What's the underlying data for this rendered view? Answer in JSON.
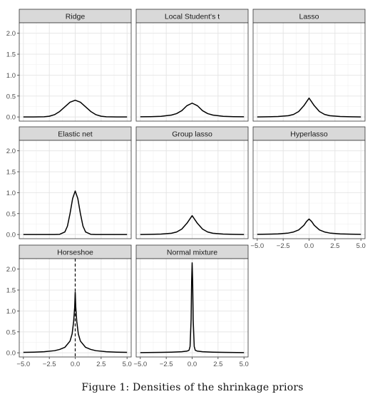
{
  "figure": {
    "caption": "Figure 1: Densities of the shrinkage priors"
  },
  "chart_data": {
    "type": "line",
    "layout": "facet-grid 3x3",
    "xlim": [
      -5.4,
      5.4
    ],
    "ylim": [
      -0.1,
      2.25
    ],
    "x_ticks": [
      -5.0,
      -2.5,
      0.0,
      2.5,
      5.0
    ],
    "y_ticks": [
      0.0,
      0.5,
      1.0,
      1.5,
      2.0
    ],
    "x_tick_labels": [
      "−5.0",
      "−2.5",
      "0.0",
      "2.5",
      "5.0"
    ],
    "y_tick_labels": [
      "0.0",
      "0.5",
      "1.0",
      "1.5",
      "2.0"
    ],
    "grid": true,
    "panel_strip_color": "#d9d9d9",
    "line_color": "#000000",
    "panels": [
      {
        "name": "Ridge",
        "x": [
          -5.0,
          -4.0,
          -3.0,
          -2.5,
          -2.0,
          -1.5,
          -1.0,
          -0.5,
          0.0,
          0.5,
          1.0,
          1.5,
          2.0,
          2.5,
          3.0,
          4.0,
          5.0
        ],
        "y": [
          0.0,
          0.0,
          0.004,
          0.017,
          0.054,
          0.13,
          0.242,
          0.352,
          0.4,
          0.352,
          0.242,
          0.13,
          0.054,
          0.017,
          0.004,
          0.0,
          0.0
        ]
      },
      {
        "name": "Local Student's t",
        "x": [
          -5.0,
          -4.0,
          -3.0,
          -2.0,
          -1.5,
          -1.0,
          -0.5,
          0.0,
          0.5,
          1.0,
          1.5,
          2.0,
          3.0,
          4.0,
          5.0
        ],
        "y": [
          0.004,
          0.007,
          0.015,
          0.045,
          0.08,
          0.15,
          0.27,
          0.33,
          0.27,
          0.15,
          0.08,
          0.045,
          0.015,
          0.007,
          0.004
        ]
      },
      {
        "name": "Lasso",
        "x": [
          -5.0,
          -4.0,
          -3.0,
          -2.0,
          -1.5,
          -1.0,
          -0.5,
          0.0,
          0.5,
          1.0,
          1.5,
          2.0,
          3.0,
          4.0,
          5.0
        ],
        "y": [
          0.001,
          0.004,
          0.01,
          0.03,
          0.06,
          0.13,
          0.27,
          0.45,
          0.27,
          0.13,
          0.06,
          0.03,
          0.01,
          0.004,
          0.001
        ]
      },
      {
        "name": "Elastic net",
        "x": [
          -5.0,
          -3.0,
          -2.0,
          -1.5,
          -1.0,
          -0.75,
          -0.5,
          -0.25,
          0.0,
          0.25,
          0.5,
          0.75,
          1.0,
          1.5,
          2.0,
          3.0,
          5.0
        ],
        "y": [
          0.0,
          0.0,
          0.0,
          0.005,
          0.06,
          0.2,
          0.5,
          0.86,
          1.04,
          0.86,
          0.5,
          0.2,
          0.06,
          0.005,
          0.0,
          0.0,
          0.0
        ]
      },
      {
        "name": "Group lasso",
        "x": [
          -5.0,
          -4.0,
          -3.0,
          -2.0,
          -1.5,
          -1.0,
          -0.5,
          0.0,
          0.5,
          1.0,
          1.5,
          2.0,
          3.0,
          4.0,
          5.0
        ],
        "y": [
          0.001,
          0.004,
          0.01,
          0.03,
          0.06,
          0.13,
          0.27,
          0.45,
          0.27,
          0.13,
          0.06,
          0.03,
          0.01,
          0.004,
          0.001
        ]
      },
      {
        "name": "Hyperlasso",
        "x": [
          -5.0,
          -4.0,
          -3.0,
          -2.0,
          -1.5,
          -1.0,
          -0.5,
          -0.25,
          0.0,
          0.25,
          0.5,
          1.0,
          1.5,
          2.0,
          3.0,
          4.0,
          5.0
        ],
        "y": [
          0.005,
          0.008,
          0.015,
          0.035,
          0.06,
          0.11,
          0.22,
          0.31,
          0.37,
          0.31,
          0.22,
          0.11,
          0.06,
          0.035,
          0.015,
          0.008,
          0.005
        ]
      },
      {
        "name": "Horseshoe",
        "x": [
          -5.0,
          -4.0,
          -3.0,
          -2.0,
          -1.5,
          -1.0,
          -0.5,
          -0.3,
          -0.15,
          -0.05,
          0.0,
          0.05,
          0.15,
          0.3,
          0.5,
          1.0,
          1.5,
          2.0,
          3.0,
          4.0,
          5.0
        ],
        "y": [
          0.01,
          0.015,
          0.025,
          0.05,
          0.08,
          0.13,
          0.28,
          0.45,
          0.75,
          1.1,
          1.45,
          1.1,
          0.75,
          0.45,
          0.28,
          0.13,
          0.08,
          0.05,
          0.025,
          0.015,
          0.01
        ],
        "vline_x": 0.0
      },
      {
        "name": "Normal mixture",
        "x": [
          -5.0,
          -3.0,
          -2.0,
          -1.0,
          -0.5,
          -0.3,
          -0.2,
          -0.1,
          -0.05,
          0.0,
          0.05,
          0.1,
          0.2,
          0.3,
          0.5,
          1.0,
          2.0,
          3.0,
          5.0
        ],
        "y": [
          0.005,
          0.01,
          0.015,
          0.025,
          0.04,
          0.06,
          0.15,
          0.8,
          1.7,
          2.15,
          1.7,
          0.8,
          0.15,
          0.06,
          0.04,
          0.025,
          0.015,
          0.01,
          0.005
        ]
      }
    ]
  }
}
